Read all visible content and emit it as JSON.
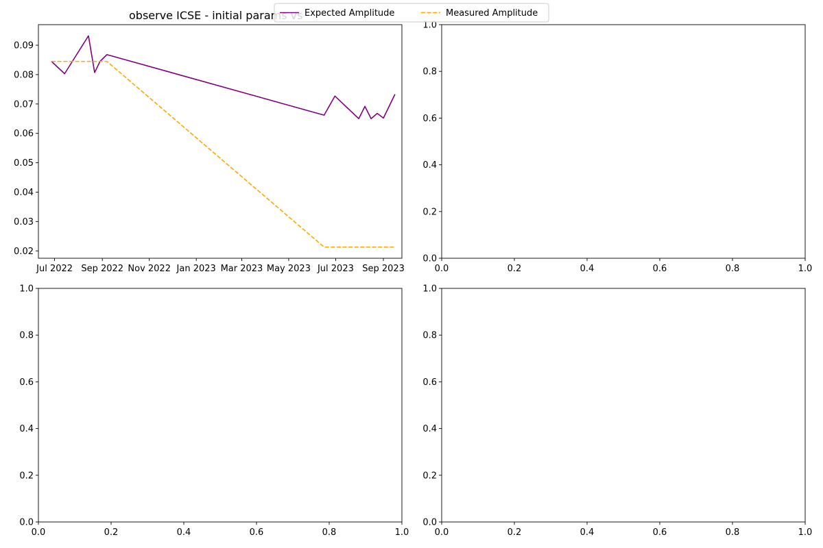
{
  "chart_data": [
    {
      "type": "line",
      "title": "observe ICSE - initial params vs",
      "xlabel": "",
      "ylabel": "",
      "x_type": "date",
      "xlim": [
        "2022-06-10",
        "2023-09-25"
      ],
      "ylim": [
        0.0175,
        0.097
      ],
      "x_ticks": [
        "2022-07-01",
        "2022-09-01",
        "2022-11-01",
        "2023-01-01",
        "2023-03-01",
        "2023-05-01",
        "2023-07-01",
        "2023-09-01"
      ],
      "x_tick_labels": [
        "Jul 2022",
        "Sep 2022",
        "Nov 2022",
        "Jan 2023",
        "Mar 2023",
        "May 2023",
        "Jul 2023",
        "Sep 2023"
      ],
      "y_ticks": [
        0.02,
        0.03,
        0.04,
        0.05,
        0.06,
        0.07,
        0.08,
        0.09
      ],
      "y_tick_labels": [
        "0.02",
        "0.03",
        "0.04",
        "0.05",
        "0.06",
        "0.07",
        "0.08",
        "0.09"
      ],
      "grid": false,
      "legend_position": "top-center (figure)",
      "series": [
        {
          "name": "Expected Amplitude",
          "color": "#800080",
          "style": "solid",
          "points": [
            [
              "2022-06-27",
              0.0845
            ],
            [
              "2022-07-14",
              0.0803
            ],
            [
              "2022-08-14",
              0.0932
            ],
            [
              "2022-08-22",
              0.0807
            ],
            [
              "2022-08-29",
              0.0845
            ],
            [
              "2022-09-07",
              0.0868
            ],
            [
              "2023-06-16",
              0.0662
            ],
            [
              "2023-06-30",
              0.0727
            ],
            [
              "2023-07-31",
              0.065
            ],
            [
              "2023-08-08",
              0.0692
            ],
            [
              "2023-08-16",
              0.065
            ],
            [
              "2023-08-24",
              0.0668
            ],
            [
              "2023-09-01",
              0.0652
            ],
            [
              "2023-09-16",
              0.0733
            ]
          ]
        },
        {
          "name": "Measured Amplitude",
          "color": "#FFA500",
          "style": "dashed",
          "points": [
            [
              "2022-06-27",
              0.0845
            ],
            [
              "2022-09-07",
              0.0845
            ],
            [
              "2023-06-16",
              0.0213
            ],
            [
              "2023-09-16",
              0.0213
            ]
          ]
        }
      ]
    },
    {
      "type": "line",
      "title": "",
      "xlabel": "",
      "ylabel": "",
      "xlim": [
        0,
        1
      ],
      "ylim": [
        0,
        1
      ],
      "x_ticks": [
        0,
        0.2,
        0.4,
        0.6,
        0.8,
        1.0
      ],
      "x_tick_labels": [
        "0.0",
        "0.2",
        "0.4",
        "0.6",
        "0.8",
        "1.0"
      ],
      "y_ticks": [
        0,
        0.2,
        0.4,
        0.6,
        0.8,
        1.0
      ],
      "y_tick_labels": [
        "0.0",
        "0.2",
        "0.4",
        "0.6",
        "0.8",
        "1.0"
      ],
      "grid": false,
      "series": []
    },
    {
      "type": "line",
      "title": "",
      "xlabel": "",
      "ylabel": "",
      "xlim": [
        0,
        1
      ],
      "ylim": [
        0,
        1
      ],
      "x_ticks": [
        0,
        0.2,
        0.4,
        0.6,
        0.8,
        1.0
      ],
      "x_tick_labels": [
        "0.0",
        "0.2",
        "0.4",
        "0.6",
        "0.8",
        "1.0"
      ],
      "y_ticks": [
        0,
        0.2,
        0.4,
        0.6,
        0.8,
        1.0
      ],
      "y_tick_labels": [
        "0.0",
        "0.2",
        "0.4",
        "0.6",
        "0.8",
        "1.0"
      ],
      "grid": false,
      "series": []
    },
    {
      "type": "line",
      "title": "",
      "xlabel": "",
      "ylabel": "",
      "xlim": [
        0,
        1
      ],
      "ylim": [
        0,
        1
      ],
      "x_ticks": [
        0,
        0.2,
        0.4,
        0.6,
        0.8,
        1.0
      ],
      "x_tick_labels": [
        "0.0",
        "0.2",
        "0.4",
        "0.6",
        "0.8",
        "1.0"
      ],
      "y_ticks": [
        0,
        0.2,
        0.4,
        0.6,
        0.8,
        1.0
      ],
      "y_tick_labels": [
        "0.0",
        "0.2",
        "0.4",
        "0.6",
        "0.8",
        "1.0"
      ],
      "grid": false,
      "series": []
    }
  ],
  "legend": {
    "entries": [
      {
        "label": "Expected Amplitude",
        "color": "#800080",
        "style": "solid"
      },
      {
        "label": "Measured Amplitude",
        "color": "#FFA500",
        "style": "dashed"
      }
    ]
  }
}
